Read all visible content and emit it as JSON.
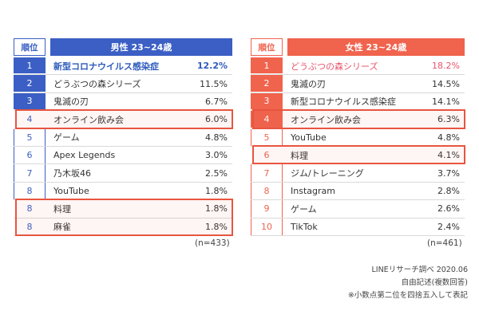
{
  "male": {
    "header_rank": "順位",
    "header_title": "男性 23~24歳",
    "rows": [
      {
        "rank": "1",
        "name": "新型コロナウイルス感染症",
        "pct": "12.2%"
      },
      {
        "rank": "2",
        "name": "どうぶつの森シリーズ",
        "pct": "11.5%"
      },
      {
        "rank": "3",
        "name": "鬼滅の刃",
        "pct": "6.7%"
      },
      {
        "rank": "4",
        "name": "オンライン飲み会",
        "pct": "6.0%"
      },
      {
        "rank": "5",
        "name": "ゲーム",
        "pct": "4.8%"
      },
      {
        "rank": "6",
        "name": "Apex Legends",
        "pct": "3.0%"
      },
      {
        "rank": "7",
        "name": "乃木坂46",
        "pct": "2.5%"
      },
      {
        "rank": "8",
        "name": "YouTube",
        "pct": "1.8%"
      },
      {
        "rank": "8",
        "name": "料理",
        "pct": "1.8%"
      },
      {
        "rank": "8",
        "name": "麻雀",
        "pct": "1.8%"
      }
    ],
    "sample": "(n=433)"
  },
  "female": {
    "header_rank": "順位",
    "header_title": "女性 23~24歳",
    "rows": [
      {
        "rank": "1",
        "name": "どうぶつの森シリーズ",
        "pct": "18.2%"
      },
      {
        "rank": "2",
        "name": "鬼滅の刃",
        "pct": "14.5%"
      },
      {
        "rank": "3",
        "name": "新型コロナウイルス感染症",
        "pct": "14.1%"
      },
      {
        "rank": "4",
        "name": "オンライン飲み会",
        "pct": "6.3%"
      },
      {
        "rank": "5",
        "name": "YouTube",
        "pct": "4.8%"
      },
      {
        "rank": "6",
        "name": "料理",
        "pct": "4.1%"
      },
      {
        "rank": "7",
        "name": "ジム/トレーニング",
        "pct": "3.7%"
      },
      {
        "rank": "8",
        "name": "Instagram",
        "pct": "2.8%"
      },
      {
        "rank": "9",
        "name": "ゲーム",
        "pct": "2.6%"
      },
      {
        "rank": "10",
        "name": "TikTok",
        "pct": "2.4%"
      }
    ],
    "sample": "(n=461)"
  },
  "notes": {
    "line1": "LINEリサーチ調べ 2020.06",
    "line2": "自由記述(複数回答)",
    "line3": "※小数点第二位を四捨五入して表記"
  },
  "colors": {
    "male_accent": "#3b5fc4",
    "female_accent": "#f0634d",
    "highlight_border": "#e8553f"
  }
}
